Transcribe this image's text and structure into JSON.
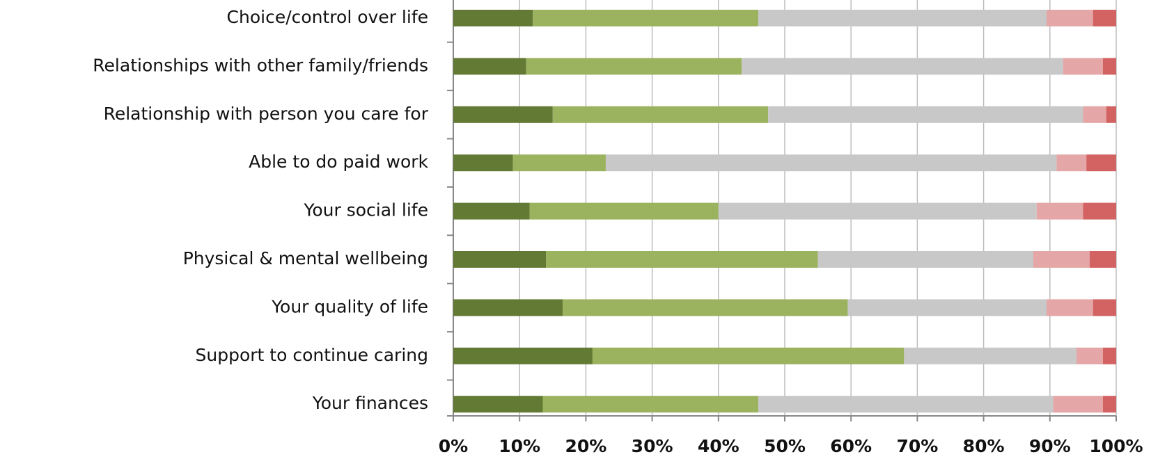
{
  "chart_data": {
    "type": "stacked_bar_horizontal",
    "categories": [
      "Choice/control over life",
      "Relationships with other family/friends",
      "Relationship with person you care for",
      "Able to do paid work",
      "Your social life",
      "Physical & mental wellbeing",
      "Your quality of life",
      "Support to continue caring",
      "Your finances"
    ],
    "series": [
      {
        "color": "#637a35",
        "values": [
          12,
          11,
          15,
          9,
          11.5,
          14,
          16.5,
          21,
          13.5
        ]
      },
      {
        "color": "#9bb25e",
        "values": [
          34,
          32.5,
          32.5,
          14,
          28.5,
          41,
          43,
          47,
          32.5
        ]
      },
      {
        "color": "#c8c8c8",
        "values": [
          43.5,
          48.5,
          47.5,
          68,
          48,
          32.5,
          30,
          26,
          44.5
        ]
      },
      {
        "color": "#e4a6a6",
        "values": [
          7,
          6,
          3.5,
          4.5,
          7,
          8.5,
          7,
          4,
          7.5
        ]
      },
      {
        "color": "#d36363",
        "values": [
          3.5,
          2,
          1.5,
          4.5,
          5,
          4,
          3.5,
          2,
          2
        ]
      }
    ],
    "xlim": [
      0,
      100
    ],
    "xticks": [
      {
        "value": 0,
        "label": "0%"
      },
      {
        "value": 10,
        "label": "10%"
      },
      {
        "value": 20,
        "label": "20%"
      },
      {
        "value": 30,
        "label": "30%"
      },
      {
        "value": 40,
        "label": "40%"
      },
      {
        "value": 50,
        "label": "50%"
      },
      {
        "value": 60,
        "label": "60%"
      },
      {
        "value": 70,
        "label": "70%"
      },
      {
        "value": 80,
        "label": "80%"
      },
      {
        "value": 90,
        "label": "90%"
      },
      {
        "value": 100,
        "label": "100%"
      }
    ],
    "grid": true
  }
}
